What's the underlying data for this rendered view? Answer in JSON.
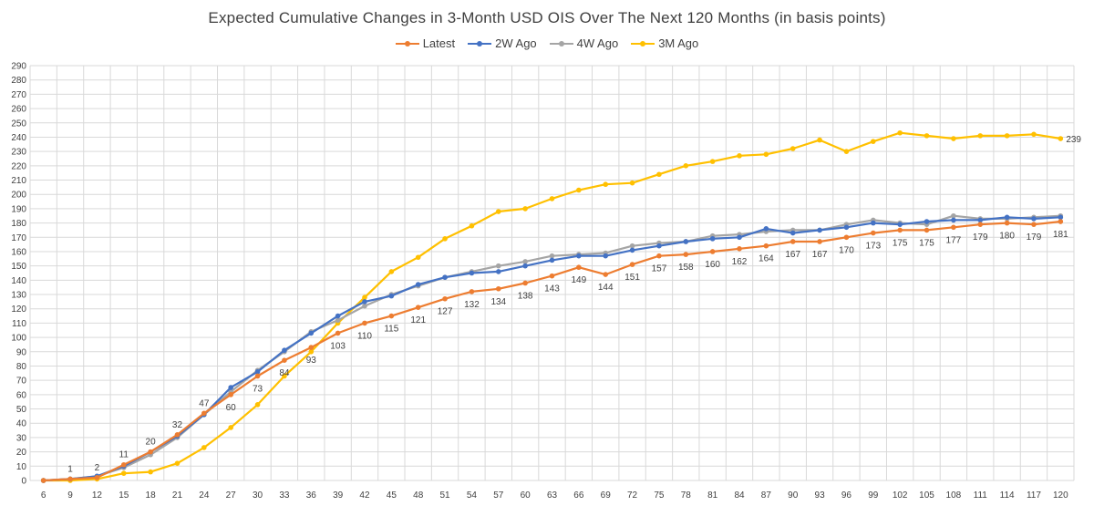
{
  "chart_data": {
    "type": "line",
    "title": "Expected Cumulative Changes in 3-Month USD OIS Over The Next 120 Months (in basis points)",
    "xlabel": "",
    "ylabel": "",
    "ylim": [
      0,
      290
    ],
    "y_ticks": [
      0,
      10,
      20,
      30,
      40,
      50,
      60,
      70,
      80,
      90,
      100,
      110,
      120,
      130,
      140,
      150,
      160,
      170,
      180,
      190,
      200,
      210,
      220,
      230,
      240,
      250,
      260,
      270,
      280,
      290
    ],
    "grid": true,
    "legend_position": "top",
    "categories": [
      "6",
      "9",
      "12",
      "15",
      "18",
      "21",
      "24",
      "27",
      "30",
      "33",
      "36",
      "39",
      "42",
      "45",
      "48",
      "51",
      "54",
      "57",
      "60",
      "63",
      "66",
      "69",
      "72",
      "75",
      "78",
      "81",
      "84",
      "87",
      "90",
      "93",
      "96",
      "99",
      "102",
      "105",
      "108",
      "111",
      "114",
      "117",
      "120"
    ],
    "series": [
      {
        "name": "Latest",
        "color": "#ED7D31",
        "values": [
          0,
          1,
          2,
          11,
          20,
          32,
          47,
          60,
          73,
          84,
          93,
          103,
          110,
          115,
          121,
          127,
          132,
          134,
          138,
          143,
          149,
          144,
          151,
          157,
          158,
          160,
          162,
          164,
          167,
          167,
          170,
          173,
          175,
          175,
          177,
          179,
          180,
          179,
          181
        ],
        "labels_visible": true
      },
      {
        "name": "2W Ago",
        "color": "#4472C4",
        "values": [
          0,
          1,
          3,
          10,
          20,
          31,
          46,
          65,
          76,
          91,
          103,
          115,
          125,
          129,
          137,
          142,
          145,
          146,
          150,
          154,
          157,
          157,
          161,
          164,
          167,
          169,
          170,
          176,
          173,
          175,
          177,
          180,
          179,
          181,
          182,
          182,
          184,
          183,
          184
        ],
        "labels_visible": false
      },
      {
        "name": "4W Ago",
        "color": "#A5A5A5",
        "values": [
          0,
          1,
          3,
          9,
          18,
          30,
          46,
          62,
          77,
          90,
          104,
          112,
          122,
          130,
          136,
          142,
          146,
          150,
          153,
          157,
          158,
          159,
          164,
          166,
          167,
          171,
          172,
          174,
          175,
          175,
          179,
          182,
          180,
          179,
          185,
          183,
          183,
          184,
          185
        ],
        "labels_visible": false
      },
      {
        "name": "3M Ago",
        "color": "#FFC000",
        "values": [
          0,
          0,
          1,
          5,
          6,
          12,
          23,
          37,
          53,
          73,
          90,
          110,
          128,
          146,
          156,
          169,
          178,
          188,
          190,
          197,
          203,
          207,
          208,
          214,
          220,
          223,
          227,
          228,
          232,
          238,
          230,
          237,
          243,
          241,
          239,
          241,
          241,
          242,
          239
        ],
        "labels_visible": false,
        "last_label": "239"
      }
    ]
  }
}
